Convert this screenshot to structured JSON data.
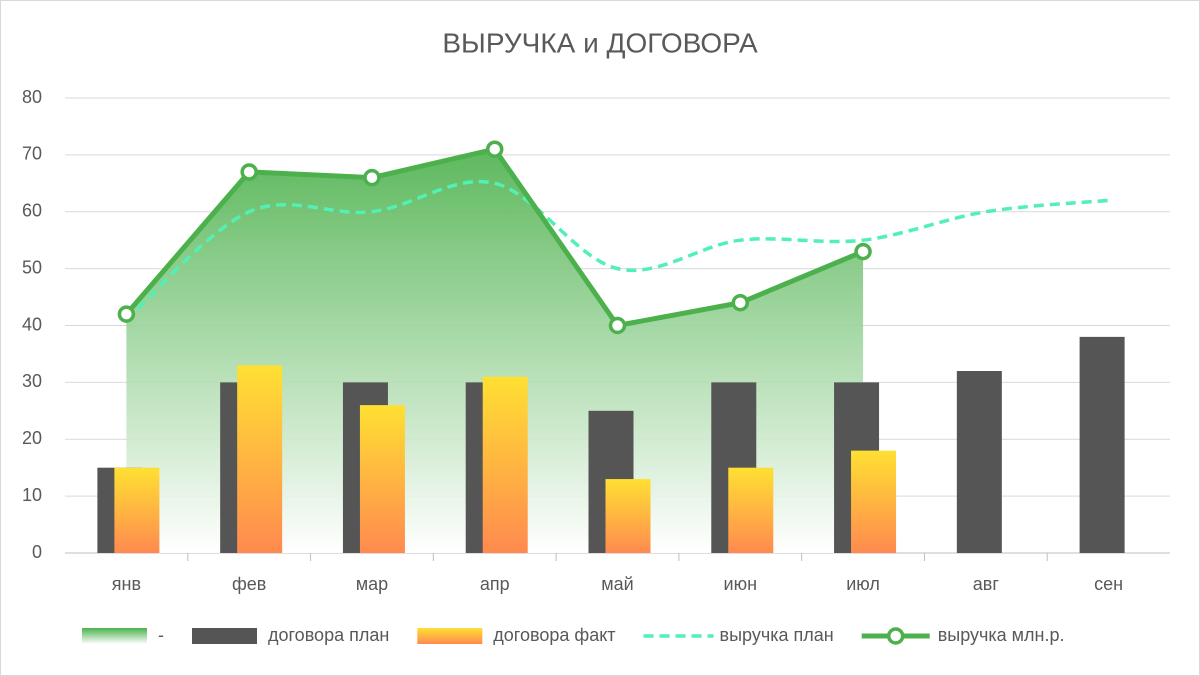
{
  "chart_data": {
    "type": "combo",
    "title": "ВЫРУЧКА и ДОГОВОРА",
    "categories": [
      "янв",
      "фев",
      "мар",
      "апр",
      "май",
      "июн",
      "июл",
      "авг",
      "сен"
    ],
    "ylim": [
      0,
      80
    ],
    "yticks": [
      0,
      10,
      20,
      30,
      40,
      50,
      60,
      70,
      80
    ],
    "grid": true,
    "legend": "bottom",
    "series": [
      {
        "name": "-",
        "type": "area",
        "color": [
          "#4cb14c",
          "#ffffff"
        ],
        "values": [
          42,
          67,
          66,
          71,
          40,
          44,
          53,
          null,
          null
        ]
      },
      {
        "name": "договора план",
        "type": "bar",
        "color": "#555555",
        "values": [
          15,
          30,
          30,
          30,
          25,
          30,
          30,
          32,
          38
        ]
      },
      {
        "name": "договора факт",
        "type": "bar",
        "color": [
          "#ffe033",
          "#ff8a4f"
        ],
        "values": [
          15,
          33,
          26,
          31,
          13,
          15,
          18,
          null,
          null
        ]
      },
      {
        "name": "выручка план",
        "type": "dashed-line",
        "color": "#52f0b4",
        "values": [
          41,
          60,
          60,
          65,
          50,
          55,
          55,
          60,
          62
        ]
      },
      {
        "name": "выручка млн.р.",
        "type": "line",
        "color": "#4cb14c",
        "values": [
          42,
          67,
          66,
          71,
          40,
          44,
          53,
          null,
          null
        ]
      }
    ]
  }
}
